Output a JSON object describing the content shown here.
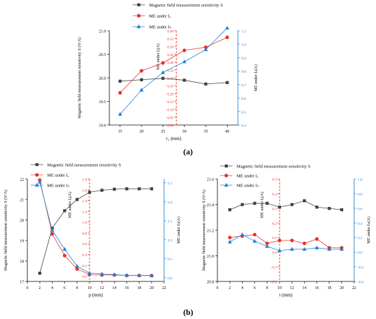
{
  "panel_labels": {
    "a": "(a)",
    "b": "(b)"
  },
  "colors": {
    "s": "#404040",
    "a": "#e8302c",
    "b": "#1f7fd6",
    "axis_a": "#e8302c",
    "axis_b": "#1f7fd6"
  },
  "chart_data": [
    {
      "type": "line",
      "title": "",
      "xlabel": "r₁ (mm)",
      "x_ticks": [
        "15",
        "20",
        "25",
        "30",
        "35",
        "40"
      ],
      "legend": [
        "Magnetic field measurement sensitivity S",
        "ME under Iₐ",
        "ME under Iₙ"
      ],
      "legend_position": "top",
      "axes": {
        "left": {
          "label": "Magnetic field measurement sensitivity S (V/A)",
          "ylim": [
            19.0,
            21.0
          ],
          "ticks": [
            "19.0",
            "19.5",
            "20.0",
            "20.5",
            "21.0"
          ]
        },
        "mid": {
          "label": "ME under Iₐ(A)",
          "ylim": [
            0.0,
            0.6
          ],
          "ticks": [
            "0.00",
            "0.05",
            "0.10",
            "0.15",
            "0.20",
            "0.25",
            "0.30",
            "0.35",
            "0.40",
            "0.45",
            "0.50",
            "0.55",
            "0.60"
          ]
        },
        "right": {
          "label": "ME under Iₙ(A)",
          "ylim": [
            0.4,
            1.1
          ],
          "ticks": [
            "0.4",
            "0.5",
            "0.6",
            "0.7",
            "0.8",
            "0.9",
            "1.0",
            "1.1"
          ]
        }
      },
      "x": [
        15,
        20,
        25,
        30,
        35,
        40
      ],
      "series": [
        {
          "name": "Magnetic field measurement sensitivity S",
          "axis": "left",
          "values": [
            19.93,
            19.96,
            19.99,
            19.95,
            19.87,
            19.9
          ]
        },
        {
          "name": "ME under Iₐ",
          "axis": "mid",
          "values": [
            0.205,
            0.345,
            0.395,
            0.475,
            0.495,
            0.558
          ]
        },
        {
          "name": "ME under Iₙ",
          "axis": "right",
          "values": [
            0.48,
            0.66,
            0.79,
            0.87,
            0.96,
            1.12
          ]
        }
      ]
    },
    {
      "type": "line",
      "title": "",
      "xlabel": "p (mm)",
      "x_ticks": [
        "0",
        "2",
        "4",
        "6",
        "8",
        "10",
        "12",
        "14",
        "16",
        "18",
        "20",
        "22"
      ],
      "legend": [
        "Magnetic field measurement sensitivity S",
        "ME under Iₐ",
        "ME under Iₙ"
      ],
      "legend_position": "top",
      "axes": {
        "left": {
          "label": "Magnetic field measurement sensitivity S (V/A)",
          "ylim": [
            17,
            22
          ],
          "ticks": [
            "17",
            "18",
            "19",
            "20",
            "21",
            "22"
          ]
        },
        "mid": {
          "label": "ME under Iₐ(A)",
          "ylim": [
            -0.1,
            1.8
          ],
          "ticks": [
            "0.0",
            "0.2",
            "0.4",
            "0.6",
            "0.8",
            "1.0",
            "1.2",
            "1.4",
            "1.6",
            "1.8"
          ]
        },
        "right": {
          "label": "ME under Iₙ(A)",
          "ylim": [
            -0.1,
            2.6
          ],
          "ticks": [
            "0.0",
            "0.5",
            "1.0",
            "1.5",
            "2.0",
            "2.5"
          ]
        }
      },
      "x": [
        2,
        4,
        6,
        8,
        10,
        12,
        14,
        16,
        18,
        20
      ],
      "series": [
        {
          "name": "Magnetic field measurement sensitivity S",
          "axis": "left",
          "values": [
            17.4,
            19.6,
            20.45,
            21.0,
            21.35,
            21.45,
            21.5,
            21.52,
            21.52,
            21.52
          ]
        },
        {
          "name": "ME under Iₐ",
          "axis": "mid",
          "values": [
            1.78,
            0.78,
            0.38,
            0.13,
            0.03,
            0.02,
            0.02,
            0.01,
            0.01,
            0.01
          ]
        },
        {
          "name": "ME under Iₙ",
          "axis": "right",
          "values": [
            2.52,
            1.25,
            0.75,
            0.3,
            0.12,
            0.1,
            0.08,
            0.06,
            0.06,
            0.05
          ]
        }
      ]
    },
    {
      "type": "line",
      "title": "",
      "xlabel": "t (mm)",
      "x_ticks": [
        "0",
        "2",
        "4",
        "6",
        "8",
        "10",
        "12",
        "14",
        "16",
        "18",
        "20",
        "22"
      ],
      "legend": [
        "Magnetic field measurement sensitivity S",
        "ME under Iₐ",
        "ME under Iₙ"
      ],
      "legend_position": "top",
      "axes": {
        "left": {
          "label": "Magnetic field measurement sensitivity S (V/A)",
          "ylim": [
            20.8,
            21.6
          ],
          "ticks": [
            "20.8",
            "21.0",
            "21.2",
            "21.4",
            "21.6"
          ]
        },
        "mid": {
          "label": "ME under Iₐ(A)",
          "ylim": [
            -0.2,
            0.5
          ],
          "ticks": [
            "-0.2",
            "-0.1",
            "0.0",
            "0.1",
            "0.2",
            "0.3",
            "0.4",
            "0.5"
          ]
        },
        "right": {
          "label": "ME under Iₙ(A)",
          "ylim": [
            -0.4,
            1.0
          ],
          "ticks": [
            "-0.4",
            "-0.2",
            "0.0",
            "0.2",
            "0.4",
            "0.6",
            "0.8",
            "1.0"
          ]
        }
      },
      "x": [
        2,
        4,
        6,
        8,
        10,
        12,
        14,
        16,
        18,
        20
      ],
      "series": [
        {
          "name": "Magnetic field measurement sensitivity S",
          "axis": "left",
          "values": [
            21.36,
            21.4,
            21.41,
            21.41,
            21.38,
            21.4,
            21.43,
            21.38,
            21.37,
            21.36
          ]
        },
        {
          "name": "ME under Iₐ",
          "axis": "mid",
          "values": [
            0.1,
            0.11,
            0.12,
            0.06,
            0.08,
            0.08,
            0.06,
            0.09,
            0.03,
            0.03
          ]
        },
        {
          "name": "ME under Iₙ",
          "axis": "right",
          "values": [
            0.14,
            0.24,
            0.15,
            0.08,
            0.02,
            0.04,
            0.04,
            0.06,
            0.04,
            0.04
          ]
        }
      ]
    }
  ]
}
